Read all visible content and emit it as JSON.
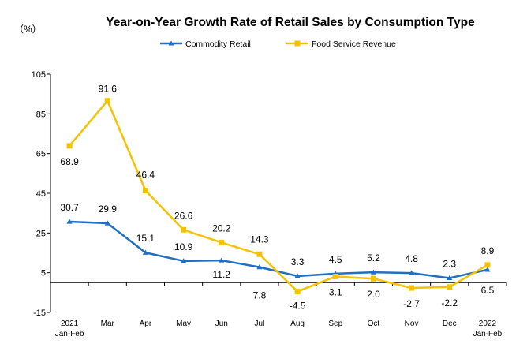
{
  "chart_data": {
    "type": "line",
    "title": "Year-on-Year Growth Rate of Retail Sales by Consumption Type",
    "unit_label": "（%）",
    "ylim": [
      -15,
      105
    ],
    "yticks": [
      "105",
      "85",
      "65",
      "45",
      "25",
      "5",
      "-15"
    ],
    "ytick_values": [
      105,
      85,
      65,
      45,
      25,
      5,
      -15
    ],
    "categories": [
      "2021|Jan-Feb",
      "Mar",
      "Apr",
      "May",
      "Jun",
      "Jul",
      "Aug",
      "Sep",
      "Oct",
      "Nov",
      "Dec",
      "2022|Jan-Feb"
    ],
    "legend_position": "top-center",
    "grid": false,
    "series": [
      {
        "name": "Commodity Retail",
        "color": "#1f6fc5",
        "marker": "triangle",
        "values": [
          30.7,
          29.9,
          15.1,
          10.9,
          11.2,
          7.8,
          3.3,
          4.5,
          5.2,
          4.8,
          2.3,
          6.5
        ],
        "labels": [
          "30.7",
          "29.9",
          "15.1",
          "10.9",
          "11.2",
          "7.8",
          "3.3",
          "4.5",
          "5.2",
          "4.8",
          "2.3",
          "6.5"
        ]
      },
      {
        "name": "Food Service Revenue",
        "color": "#f5c200",
        "marker": "square",
        "values": [
          68.9,
          91.6,
          46.4,
          26.6,
          20.2,
          14.3,
          -4.5,
          3.1,
          2.0,
          -2.7,
          -2.2,
          8.9
        ],
        "labels": [
          "68.9",
          "91.6",
          "46.4",
          "26.6",
          "20.2",
          "14.3",
          "-4.5",
          "3.1",
          "2.0",
          "-2.7",
          "-2.2",
          "8.9"
        ]
      }
    ]
  }
}
